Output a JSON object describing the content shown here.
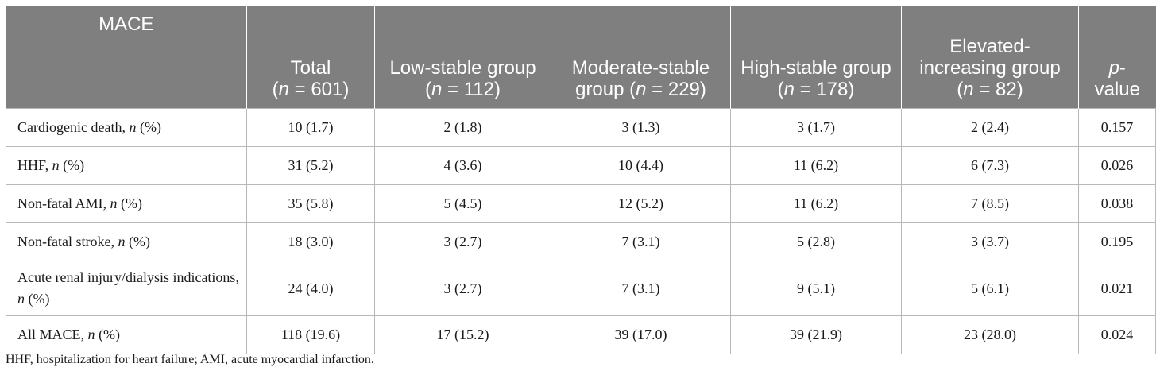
{
  "table": {
    "header": {
      "mace": "MACE",
      "total": {
        "label": "Total",
        "n_label": "n",
        "n_value": " = 601)"
      },
      "low": {
        "label": "Low-stable group (",
        "n_label": "n",
        "n_value": " = 112)"
      },
      "moderate": {
        "label": "Moderate-stable group (",
        "n_label": "n",
        "n_value": " = 229)"
      },
      "high": {
        "label": "High-stable group (",
        "n_label": "n",
        "n_value": " = 178)"
      },
      "elevated": {
        "label": "Elevated-increasing group (",
        "n_label": "n",
        "n_value": " = 82)"
      },
      "pvalue": {
        "label": "p",
        "suffix": "-value"
      }
    },
    "rows": [
      {
        "label": "Cardiogenic death, ",
        "n": "n",
        "pct": " (%)",
        "total": "10 (1.7)",
        "low": "2 (1.8)",
        "moderate": "3 (1.3)",
        "high": "3 (1.7)",
        "elevated": "2 (2.4)",
        "p": "0.157"
      },
      {
        "label": "HHF, ",
        "n": "n",
        "pct": " (%)",
        "total": "31 (5.2)",
        "low": "4 (3.6)",
        "moderate": "10 (4.4)",
        "high": "11 (6.2)",
        "elevated": "6 (7.3)",
        "p": "0.026"
      },
      {
        "label": "Non-fatal AMI, ",
        "n": "n",
        "pct": " (%)",
        "total": "35 (5.8)",
        "low": "5 (4.5)",
        "moderate": "12 (5.2)",
        "high": "11 (6.2)",
        "elevated": "7 (8.5)",
        "p": "0.038"
      },
      {
        "label": "Non-fatal stroke, ",
        "n": "n",
        "pct": " (%)",
        "total": "18 (3.0)",
        "low": "3 (2.7)",
        "moderate": "7 (3.1)",
        "high": "5 (2.8)",
        "elevated": "3 (3.7)",
        "p": "0.195"
      },
      {
        "label": "Acute renal injury/dialysis indications, ",
        "n": "n",
        "pct": " (%)",
        "total": "24 (4.0)",
        "low": "3 (2.7)",
        "moderate": "7 (3.1)",
        "high": "9 (5.1)",
        "elevated": "5 (6.1)",
        "p": "0.021"
      },
      {
        "label": "All MACE, ",
        "n": "n",
        "pct": " (%)",
        "total": "118 (19.6)",
        "low": "17 (15.2)",
        "moderate": "39 (17.0)",
        "high": "39 (21.9)",
        "elevated": "23 (28.0)",
        "p": "0.024"
      }
    ]
  },
  "footnote": "HHF, hospitalization for heart failure; AMI, acute myocardial infarction.",
  "colors": {
    "header_bg": "#7f7f7f",
    "header_text": "#ffffff",
    "grid": "#b8b8b8"
  }
}
